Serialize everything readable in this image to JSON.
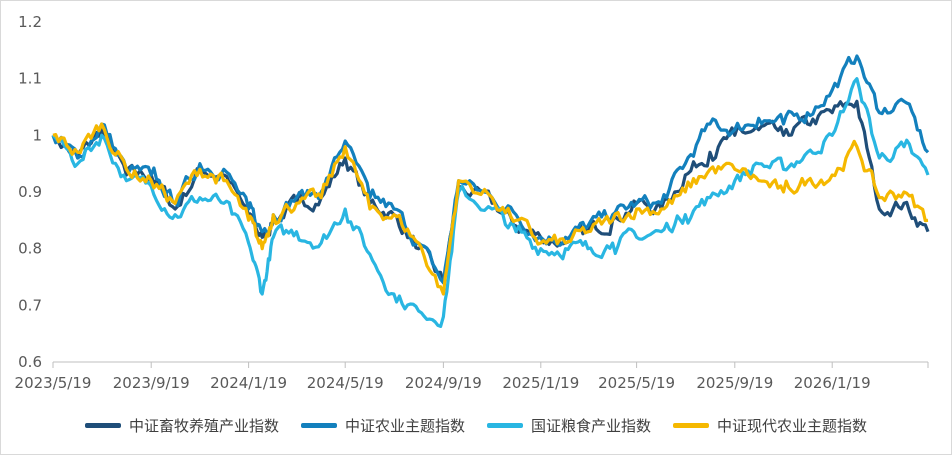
{
  "chart_data": {
    "type": "line",
    "title": "",
    "xlabel": "",
    "ylabel": "",
    "ylim": [
      0.6,
      1.2
    ],
    "yticks": [
      "0.6",
      "0.7",
      "0.8",
      "0.9",
      "1",
      "1.1",
      "1.2"
    ],
    "xticks": [
      "2023/5/19",
      "2023/9/19",
      "2024/1/19",
      "2024/5/19",
      "2024/9/19",
      "2025/1/19",
      "2025/5/19",
      "2025/9/19",
      "2026/1/19"
    ],
    "grid": false,
    "legend_position": "bottom",
    "x": [
      "2023/5/19",
      "2023/6/19",
      "2023/7/19",
      "2023/8/19",
      "2023/9/19",
      "2023/10/19",
      "2023/11/19",
      "2023/12/19",
      "2024/1/19",
      "2024/2/5",
      "2024/2/19",
      "2024/3/19",
      "2024/4/19",
      "2024/5/19",
      "2024/6/19",
      "2024/7/19",
      "2024/8/19",
      "2024/9/19",
      "2024/10/8",
      "2024/11/19",
      "2024/12/19",
      "2025/1/19",
      "2025/2/19",
      "2025/3/19",
      "2025/4/19",
      "2025/5/19",
      "2025/6/19",
      "2025/7/19",
      "2025/8/19",
      "2025/9/19",
      "2025/10/19",
      "2025/11/19",
      "2025/12/19",
      "2026/1/19",
      "2026/2/19",
      "2026/3/19",
      "2026/4/19",
      "2026/5/19"
    ],
    "series": [
      {
        "name": "中证畜牧养殖产业指数",
        "color": "#1f4e79",
        "values": [
          1.0,
          0.96,
          1.01,
          0.93,
          0.93,
          0.87,
          0.94,
          0.93,
          0.86,
          0.82,
          0.85,
          0.88,
          0.89,
          0.96,
          0.88,
          0.86,
          0.8,
          0.74,
          0.91,
          0.88,
          0.84,
          0.82,
          0.81,
          0.83,
          0.85,
          0.88,
          0.87,
          0.93,
          0.97,
          1.0,
          1.01,
          1.0,
          1.02,
          1.04,
          1.06,
          0.87,
          0.88,
          0.83
        ]
      },
      {
        "name": "中证农业主题指数",
        "color": "#1380bd",
        "values": [
          1.0,
          0.96,
          1.02,
          0.94,
          0.93,
          0.88,
          0.95,
          0.94,
          0.87,
          0.83,
          0.86,
          0.89,
          0.9,
          0.99,
          0.89,
          0.87,
          0.81,
          0.74,
          0.92,
          0.89,
          0.86,
          0.82,
          0.82,
          0.84,
          0.86,
          0.88,
          0.88,
          0.95,
          1.02,
          1.01,
          1.03,
          1.02,
          1.04,
          1.08,
          1.14,
          1.04,
          1.06,
          0.97
        ]
      },
      {
        "name": "国证粮食产业指数",
        "color": "#29b6e2",
        "values": [
          1.0,
          0.95,
          1.0,
          0.92,
          0.91,
          0.86,
          0.89,
          0.88,
          0.81,
          0.72,
          0.82,
          0.83,
          0.81,
          0.87,
          0.79,
          0.72,
          0.69,
          0.68,
          0.9,
          0.87,
          0.83,
          0.8,
          0.8,
          0.8,
          0.81,
          0.82,
          0.83,
          0.86,
          0.89,
          0.92,
          0.95,
          0.94,
          0.97,
          1.0,
          1.1,
          0.96,
          0.98,
          0.93
        ]
      },
      {
        "name": "中证现代农业主题指数",
        "color": "#f5b800",
        "values": [
          1.0,
          0.97,
          1.02,
          0.94,
          0.92,
          0.88,
          0.94,
          0.92,
          0.85,
          0.8,
          0.86,
          0.88,
          0.89,
          0.98,
          0.87,
          0.86,
          0.81,
          0.72,
          0.92,
          0.89,
          0.85,
          0.81,
          0.81,
          0.83,
          0.85,
          0.87,
          0.87,
          0.9,
          0.94,
          0.94,
          0.92,
          0.9,
          0.92,
          0.93,
          0.98,
          0.89,
          0.9,
          0.85
        ]
      }
    ]
  }
}
